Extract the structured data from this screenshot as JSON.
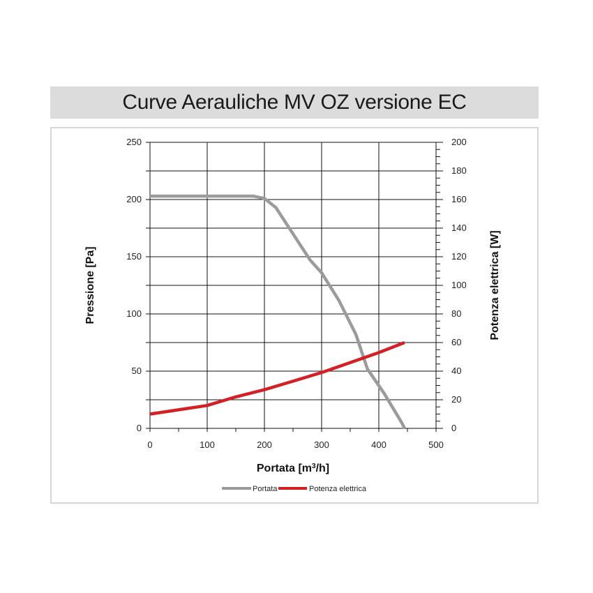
{
  "title": "Curve Aerauliche MV OZ versione EC",
  "chart_data": {
    "type": "line",
    "title": "Curve Aerauliche MV OZ versione EC",
    "xlabel_main": "Portata [m",
    "xlabel_sup": "3",
    "xlabel_end": "/h]",
    "ylabel": "Pressione [Pa]",
    "y2label": "Potenza elettrica [W]",
    "xlim": [
      0,
      500
    ],
    "ylim": [
      0,
      250
    ],
    "y2lim": [
      0,
      200
    ],
    "x_ticks": [
      "0",
      "100",
      "200",
      "300",
      "400",
      "500"
    ],
    "y_ticks": [
      "0",
      "50",
      "100",
      "150",
      "200",
      "250"
    ],
    "y2_ticks": [
      "0",
      "20",
      "40",
      "60",
      "80",
      "100",
      "120",
      "140",
      "160",
      "180",
      "200"
    ],
    "grid": true,
    "legend_position": "bottom-center",
    "series": [
      {
        "name": "Portata",
        "axis": "left",
        "color": "#9b9b9b",
        "x": [
          0,
          100,
          180,
          200,
          220,
          250,
          280,
          300,
          330,
          360,
          380,
          410,
          440,
          445
        ],
        "y": [
          203,
          203,
          203,
          201,
          193,
          170,
          147,
          136,
          112,
          82,
          52,
          30,
          5,
          0
        ]
      },
      {
        "name": "Potenza elettrica",
        "axis": "right",
        "color": "#d42025",
        "x": [
          0,
          50,
          100,
          150,
          200,
          250,
          300,
          350,
          400,
          445
        ],
        "y": [
          10,
          13,
          16,
          22,
          27,
          33,
          39,
          46,
          53,
          60
        ]
      }
    ]
  }
}
